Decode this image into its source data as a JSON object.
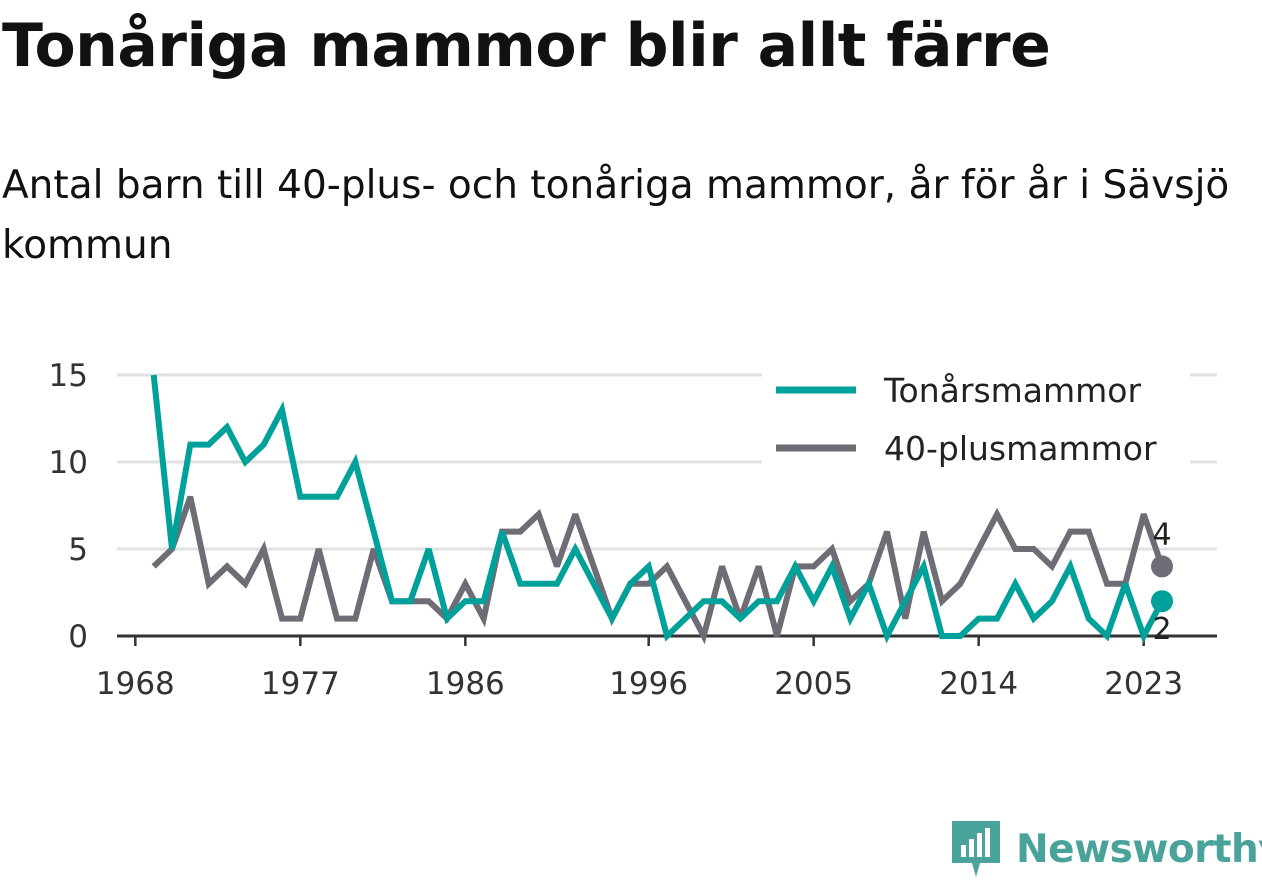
{
  "title": "Tonåriga mammor blir allt färre",
  "subtitle": "Antal barn till 40-plus- och tonåriga mammor, år för år i Sävsjö kommun",
  "brand": {
    "name": "Newsworthy",
    "color": "#4aa39b"
  },
  "chart_data": {
    "type": "line",
    "x": [
      1969,
      1970,
      1971,
      1972,
      1973,
      1974,
      1975,
      1976,
      1977,
      1978,
      1979,
      1980,
      1981,
      1982,
      1983,
      1984,
      1985,
      1986,
      1987,
      1988,
      1989,
      1990,
      1991,
      1992,
      1993,
      1994,
      1995,
      1996,
      1997,
      1998,
      1999,
      2000,
      2001,
      2002,
      2003,
      2004,
      2005,
      2006,
      2007,
      2008,
      2009,
      2010,
      2011,
      2012,
      2013,
      2014,
      2015,
      2016,
      2017,
      2018,
      2019,
      2020,
      2021,
      2022,
      2023,
      2024
    ],
    "x_ticks": [
      "1968",
      "1977",
      "1986",
      "1996",
      "2005",
      "2014",
      "2023"
    ],
    "x_tick_values": [
      1968,
      1977,
      1986,
      1996,
      2005,
      2014,
      2023
    ],
    "y_ticks": [
      "0",
      "5",
      "10",
      "15"
    ],
    "y_tick_values": [
      0,
      5,
      10,
      15
    ],
    "ylim": [
      0,
      15
    ],
    "xlim": [
      1967,
      2027
    ],
    "grid": "horizontal",
    "legend_position": "top-right",
    "series": [
      {
        "name": "Tonårsmammor",
        "color": "#00a19a",
        "values": [
          15,
          5,
          11,
          11,
          12,
          10,
          11,
          13,
          8,
          8,
          8,
          10,
          6,
          2,
          2,
          5,
          1,
          2,
          2,
          6,
          3,
          3,
          3,
          5,
          3,
          1,
          3,
          4,
          0,
          1,
          2,
          2,
          1,
          2,
          2,
          4,
          2,
          4,
          1,
          3,
          0,
          2,
          4,
          0,
          0,
          1,
          1,
          3,
          1,
          2,
          4,
          1,
          0,
          3,
          0,
          2
        ],
        "end_label": "2"
      },
      {
        "name": "40-plusmammor",
        "color": "#6e6d75",
        "values": [
          4,
          5,
          8,
          3,
          4,
          3,
          5,
          1,
          1,
          5,
          1,
          1,
          5,
          2,
          2,
          2,
          1,
          3,
          1,
          6,
          6,
          7,
          4,
          7,
          4,
          1,
          3,
          3,
          4,
          2,
          0,
          4,
          1,
          4,
          0,
          4,
          4,
          5,
          2,
          3,
          6,
          1,
          6,
          2,
          3,
          5,
          7,
          5,
          5,
          4,
          6,
          6,
          3,
          3,
          7,
          4
        ],
        "end_label": "4"
      }
    ]
  }
}
